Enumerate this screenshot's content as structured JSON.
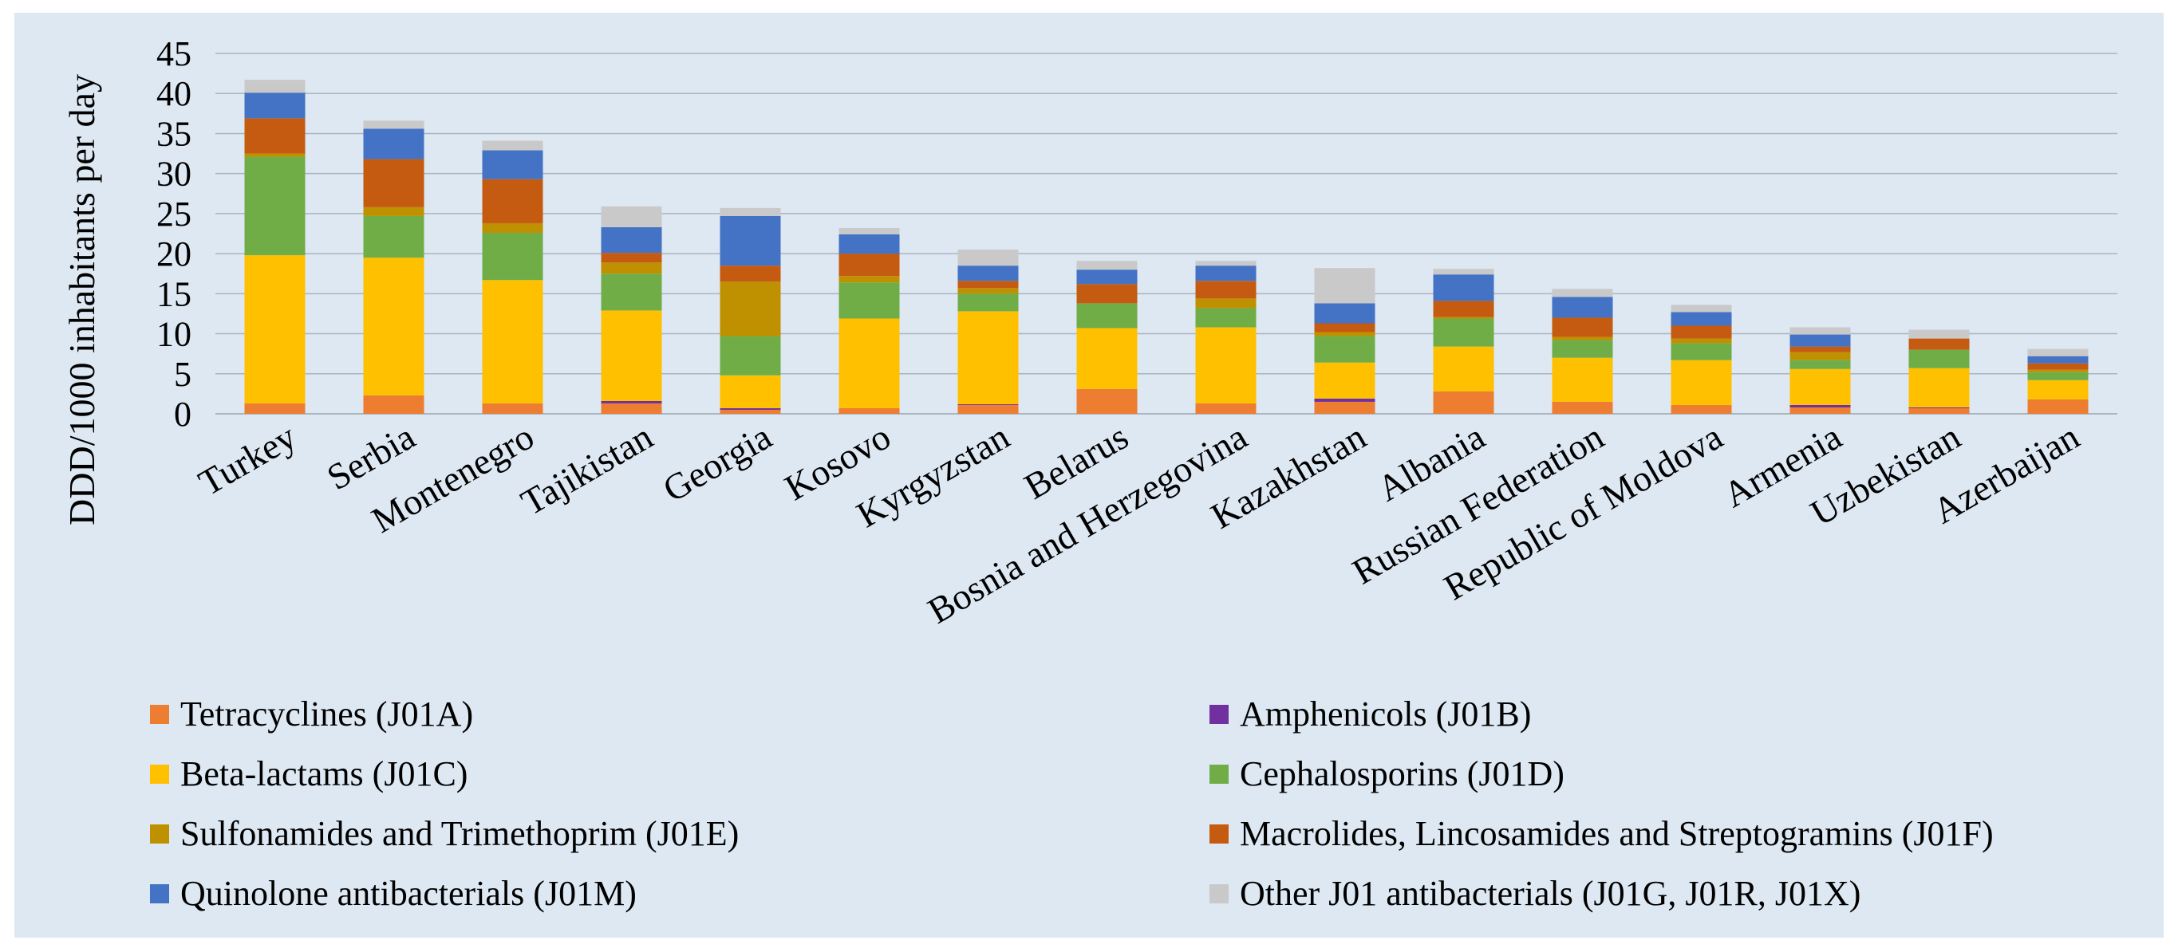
{
  "chart_data": {
    "type": "bar",
    "stacked": true,
    "title": "",
    "xlabel": "",
    "ylabel": "DDD/1000 inhabitants per day",
    "ylim": [
      0,
      45
    ],
    "yticks": [
      0,
      5,
      10,
      15,
      20,
      25,
      30,
      35,
      40,
      45
    ],
    "grid": true,
    "legend_position": "bottom",
    "categories": [
      "Turkey",
      "Serbia",
      "Montenegro",
      "Tajikistan",
      "Georgia",
      "Kosovo",
      "Kyrgyzstan",
      "Belarus",
      "Bosnia and Herzegovina",
      "Kazakhstan",
      "Albania",
      "Russian Federation",
      "Republic of Moldova",
      "Armenia",
      "Uzbekistan",
      "Azerbaijan"
    ],
    "series": [
      {
        "name": "Tetracyclines (J01A)",
        "color": "#ed7d31",
        "values": [
          1.3,
          2.3,
          1.3,
          1.3,
          0.5,
          0.7,
          1.1,
          3.1,
          1.3,
          1.5,
          2.8,
          1.5,
          1.1,
          0.8,
          0.7,
          1.8
        ]
      },
      {
        "name": "Amphenicols (J01B)",
        "color": "#7030a0",
        "values": [
          0,
          0,
          0,
          0.3,
          0.2,
          0,
          0.1,
          0,
          0,
          0.4,
          0,
          0,
          0,
          0.3,
          0.1,
          0
        ]
      },
      {
        "name": "Beta-lactams (J01C)",
        "color": "#ffc000",
        "values": [
          18.5,
          17.2,
          15.4,
          11.3,
          4.1,
          11.2,
          11.6,
          7.6,
          9.5,
          4.5,
          5.6,
          5.5,
          5.6,
          4.5,
          4.9,
          2.4
        ]
      },
      {
        "name": "Cephalosporins (J01D)",
        "color": "#70ad47",
        "values": [
          12.3,
          5.2,
          5.9,
          4.6,
          4.9,
          4.5,
          2.2,
          3.1,
          2.4,
          3.3,
          3.5,
          2.2,
          2.1,
          1.1,
          2.3,
          1.0
        ]
      },
      {
        "name": "Sulfonamides and Trimethoprim (J01E)",
        "color": "#bf9000",
        "values": [
          0.4,
          1.1,
          1.2,
          1.4,
          6.8,
          0.8,
          0.7,
          0,
          1.2,
          0.5,
          0.2,
          0.4,
          0.6,
          1.0,
          0,
          0.3
        ]
      },
      {
        "name": "Macrolides, Lincosamides and Streptogramins (J01F)",
        "color": "#c55a11",
        "values": [
          4.4,
          6.0,
          5.5,
          1.2,
          2.0,
          2.8,
          0.9,
          2.4,
          2.2,
          1.1,
          2.0,
          2.4,
          1.6,
          0.7,
          1.4,
          0.8
        ]
      },
      {
        "name": "Quinolone antibacterials (J01M)",
        "color": "#4472c4",
        "values": [
          3.2,
          3.8,
          3.6,
          3.2,
          6.2,
          2.4,
          1.9,
          1.8,
          1.9,
          2.5,
          3.3,
          2.6,
          1.7,
          1.5,
          0,
          0.9
        ]
      },
      {
        "name": "Other J01 antibacterials (J01G, J01R, J01X)",
        "color": "#c9c9c9",
        "values": [
          1.6,
          1.0,
          1.2,
          2.6,
          1.0,
          0.8,
          2.0,
          1.1,
          0.6,
          4.4,
          0.7,
          1.0,
          0.9,
          0.9,
          1.1,
          0.9
        ]
      }
    ]
  }
}
